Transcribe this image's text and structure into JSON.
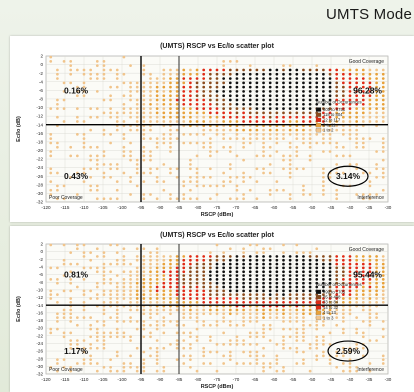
{
  "slide": {
    "title": "UMTS Mode"
  },
  "colors": {
    "background": "#e6ede0",
    "bins": [
      "#f1c48b",
      "#e8a13a",
      "#e02a14",
      "#8a4b1d",
      "#111111"
    ]
  },
  "chart_data": [
    {
      "type": "scatter",
      "title": "(UMTS) RSCP vs Ec/Io scatter plot",
      "xlabel": "RSCP (dBm)",
      "ylabel": "Ec/Io (dB)",
      "xlim": [
        -120,
        -30
      ],
      "ylim": [
        -32,
        2
      ],
      "x_ticks": [
        -120,
        -115,
        -110,
        -105,
        -100,
        -95,
        -90,
        -85,
        -80,
        -75,
        -70,
        -65,
        -60,
        -55,
        -50,
        -45,
        -40,
        -35,
        -30
      ],
      "y_ticks": [
        2,
        0,
        -2,
        -4,
        -6,
        -8,
        -10,
        -12,
        -14,
        -16,
        -18,
        -20,
        -22,
        -24,
        -26,
        -28,
        -30,
        -32
      ],
      "threshold_lines": {
        "rscp_vertical": -95,
        "rscp_vertical_secondary": -85,
        "ecio_horizontal": -14
      },
      "quadrant_labels": {
        "top_right": "Good Coverage",
        "bottom_left": "Poor Coverage",
        "bottom_right": "Interference"
      },
      "quadrant_percentages": {
        "top_left": "0.16%",
        "top_right": "96.28%",
        "bottom_left": "0.43%",
        "bottom_right": "3.14%"
      },
      "legend_title": "Number of Occurrences",
      "legend_entries": [
        "805 to 6751",
        "118 to 804",
        "12 to 117",
        "3 to 11",
        "1 to 2"
      ],
      "density_model": {
        "core": {
          "x": -58,
          "y": -6
        },
        "spread_x": 22,
        "spread_y": 4.5
      }
    },
    {
      "type": "scatter",
      "title": "(UMTS) RSCP vs Ec/Io scatter plot",
      "xlabel": "RSCP (dBm)",
      "ylabel": "Ec/Io (dB)",
      "xlim": [
        -120,
        -30
      ],
      "ylim": [
        -32,
        2
      ],
      "x_ticks": [
        -120,
        -115,
        -110,
        -105,
        -100,
        -95,
        -90,
        -85,
        -80,
        -75,
        -70,
        -65,
        -60,
        -55,
        -50,
        -45,
        -40,
        -35,
        -30
      ],
      "y_ticks": [
        2,
        0,
        -2,
        -4,
        -6,
        -8,
        -10,
        -12,
        -14,
        -16,
        -18,
        -20,
        -22,
        -24,
        -26,
        -28,
        -30,
        -32
      ],
      "threshold_lines": {
        "rscp_vertical": -95,
        "rscp_vertical_secondary": -85,
        "ecio_horizontal": -14
      },
      "quadrant_labels": {
        "top_right": "Good Coverage",
        "bottom_left": "Poor Coverage",
        "bottom_right": "Interference"
      },
      "quadrant_percentages": {
        "top_left": "0.81%",
        "top_right": "95.44%",
        "bottom_left": "1.17%",
        "bottom_right": "2.59%"
      },
      "legend_title": "Number of Occurrences",
      "legend_entries": [
        "499 to 1705",
        "85 to 498",
        "33 to 84",
        "14 to 32",
        "4 to 13",
        "1 to 3"
      ],
      "density_model": {
        "core": {
          "x": -60,
          "y": -6
        },
        "spread_x": 24,
        "spread_y": 5
      }
    }
  ]
}
